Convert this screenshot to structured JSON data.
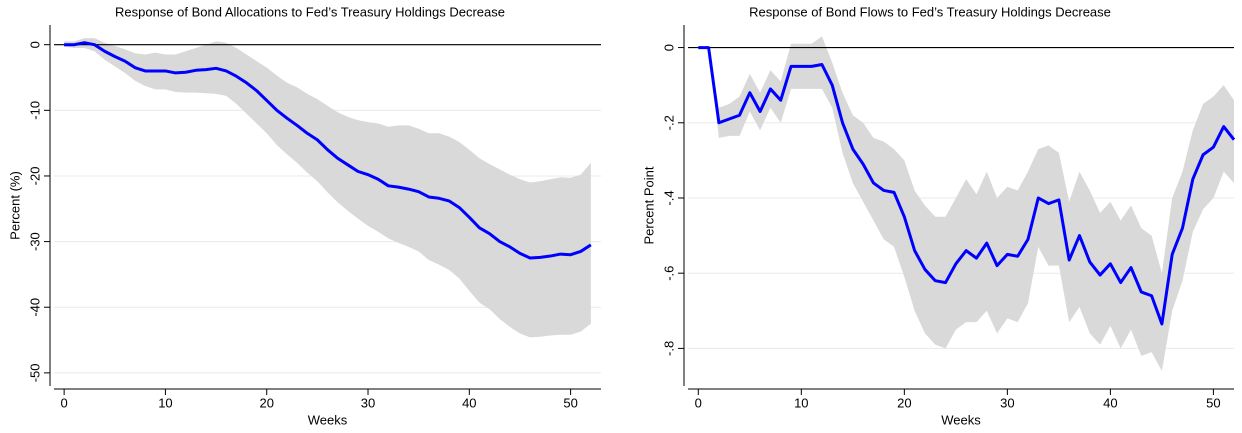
{
  "chart_data": [
    {
      "type": "line",
      "title": "Response of Bond Allocations to Fed’s Treasury Holdings Decrease",
      "xlabel": "Weeks",
      "ylabel": "Percent (%)",
      "x": [
        0,
        1,
        2,
        3,
        4,
        5,
        6,
        7,
        8,
        9,
        10,
        11,
        12,
        13,
        14,
        15,
        16,
        17,
        18,
        19,
        20,
        21,
        22,
        23,
        24,
        25,
        26,
        27,
        28,
        29,
        30,
        31,
        32,
        33,
        34,
        35,
        36,
        37,
        38,
        39,
        40,
        41,
        42,
        43,
        44,
        45,
        46,
        47,
        48,
        49,
        50,
        51,
        52
      ],
      "values": [
        0,
        0,
        0.3,
        0,
        -1,
        -1.8,
        -2.5,
        -3.5,
        -4,
        -4,
        -4,
        -4.3,
        -4.2,
        -3.9,
        -3.8,
        -3.6,
        -4,
        -4.8,
        -5.8,
        -7,
        -8.5,
        -10,
        -11.2,
        -12.3,
        -13.5,
        -14.5,
        -16,
        -17.3,
        -18.3,
        -19.3,
        -19.8,
        -20.5,
        -21.5,
        -21.7,
        -22,
        -22.4,
        -23.2,
        -23.4,
        -23.8,
        -24.8,
        -26.3,
        -27.9,
        -28.8,
        -30,
        -30.8,
        -31.8,
        -32.5,
        -32.4,
        -32.2,
        -31.9,
        -32,
        -31.5,
        -30.5
      ],
      "ci_upper": [
        0.5,
        0.5,
        1,
        1,
        0.3,
        -0.2,
        -0.7,
        -1.3,
        -1.5,
        -1.2,
        -1.5,
        -1.5,
        -1,
        -0.5,
        0,
        0.5,
        0.3,
        -0.5,
        -1.5,
        -2.5,
        -3.5,
        -4.7,
        -5.8,
        -6.5,
        -7.5,
        -8.3,
        -9.3,
        -10.3,
        -11,
        -11.5,
        -11.8,
        -12,
        -12.5,
        -12.3,
        -12.3,
        -12.8,
        -13.5,
        -13.5,
        -14,
        -14.8,
        -16,
        -17.3,
        -18.2,
        -19,
        -19.8,
        -20.5,
        -21,
        -20.8,
        -20.5,
        -20.2,
        -20.3,
        -19.8,
        -18
      ],
      "ci_lower": [
        -0.3,
        -0.5,
        -0.5,
        -1,
        -2.3,
        -3.3,
        -4.3,
        -5.5,
        -6.3,
        -6.8,
        -6.8,
        -7.2,
        -7.3,
        -7.3,
        -7.4,
        -7.5,
        -7.8,
        -9,
        -10.5,
        -12,
        -13.5,
        -15.3,
        -16.7,
        -18,
        -19.5,
        -20.8,
        -22.5,
        -24,
        -25.3,
        -26.5,
        -27.6,
        -28.5,
        -29.5,
        -30.2,
        -30.8,
        -31.5,
        -32.8,
        -33.5,
        -34.3,
        -35.6,
        -37.5,
        -39.3,
        -40.3,
        -41.8,
        -43,
        -44,
        -44.6,
        -44.5,
        -44.3,
        -44.2,
        -44.2,
        -43.7,
        -42.5
      ],
      "color": "#0000ff",
      "band_color": "#d9d9d9",
      "reference_line": 0,
      "xlim": [
        -1,
        53
      ],
      "ylim": [
        -52,
        3
      ],
      "xticks": [
        0,
        10,
        20,
        30,
        40,
        50
      ],
      "yticks": [
        0,
        -10,
        -20,
        -30,
        -40,
        -50
      ],
      "grid": true
    },
    {
      "type": "line",
      "title": "Response of Bond Flows to Fed’s Treasury Holdings Decrease",
      "xlabel": "Weeks",
      "ylabel": "Percent Point",
      "x": [
        0,
        1,
        2,
        3,
        4,
        5,
        6,
        7,
        8,
        9,
        10,
        11,
        12,
        13,
        14,
        15,
        16,
        17,
        18,
        19,
        20,
        21,
        22,
        23,
        24,
        25,
        26,
        27,
        28,
        29,
        30,
        31,
        32,
        33,
        34,
        35,
        36,
        37,
        38,
        39,
        40,
        41,
        42,
        43,
        44,
        45,
        46,
        47,
        48,
        49,
        50,
        51,
        52
      ],
      "values": [
        0,
        0,
        -0.2,
        -0.19,
        -0.18,
        -0.12,
        -0.17,
        -0.11,
        -0.14,
        -0.05,
        -0.05,
        -0.05,
        -0.045,
        -0.1,
        -0.2,
        -0.27,
        -0.31,
        -0.36,
        -0.38,
        -0.385,
        -0.45,
        -0.54,
        -0.59,
        -0.62,
        -0.625,
        -0.575,
        -0.54,
        -0.56,
        -0.52,
        -0.58,
        -0.55,
        -0.555,
        -0.51,
        -0.4,
        -0.415,
        -0.405,
        -0.565,
        -0.5,
        -0.57,
        -0.605,
        -0.575,
        -0.625,
        -0.585,
        -0.65,
        -0.66,
        -0.735,
        -0.55,
        -0.48,
        -0.35,
        -0.285,
        -0.265,
        -0.21,
        -0.245
      ],
      "ci_upper": [
        0,
        0,
        -0.16,
        -0.15,
        -0.13,
        -0.07,
        -0.12,
        -0.06,
        -0.09,
        0.01,
        0.01,
        0.01,
        0.03,
        -0.04,
        -0.12,
        -0.18,
        -0.2,
        -0.24,
        -0.25,
        -0.27,
        -0.3,
        -0.38,
        -0.42,
        -0.45,
        -0.45,
        -0.4,
        -0.35,
        -0.39,
        -0.33,
        -0.4,
        -0.37,
        -0.38,
        -0.33,
        -0.27,
        -0.26,
        -0.28,
        -0.41,
        -0.33,
        -0.38,
        -0.44,
        -0.41,
        -0.46,
        -0.42,
        -0.48,
        -0.5,
        -0.6,
        -0.4,
        -0.33,
        -0.22,
        -0.15,
        -0.13,
        -0.1,
        -0.14
      ],
      "ci_lower": [
        0,
        0,
        -0.24,
        -0.235,
        -0.235,
        -0.17,
        -0.22,
        -0.16,
        -0.2,
        -0.11,
        -0.11,
        -0.11,
        -0.11,
        -0.16,
        -0.28,
        -0.36,
        -0.41,
        -0.46,
        -0.51,
        -0.53,
        -0.61,
        -0.7,
        -0.76,
        -0.79,
        -0.8,
        -0.75,
        -0.73,
        -0.73,
        -0.7,
        -0.76,
        -0.72,
        -0.73,
        -0.68,
        -0.53,
        -0.58,
        -0.58,
        -0.73,
        -0.69,
        -0.76,
        -0.79,
        -0.74,
        -0.8,
        -0.75,
        -0.82,
        -0.81,
        -0.86,
        -0.7,
        -0.62,
        -0.49,
        -0.43,
        -0.4,
        -0.33,
        -0.36
      ],
      "color": "#0000ff",
      "band_color": "#d9d9d9",
      "reference_line": 0,
      "xlim": [
        -1,
        52
      ],
      "ylim": [
        -0.9,
        0.06
      ],
      "xticks": [
        0,
        10,
        20,
        30,
        40,
        50
      ],
      "yticks": [
        0,
        {
          "value": -0.2,
          "label": "-.2"
        },
        {
          "value": -0.4,
          "label": "-.4"
        },
        {
          "value": -0.6,
          "label": "-.6"
        },
        {
          "value": -0.8,
          "label": "-.8"
        }
      ],
      "grid": true
    }
  ]
}
